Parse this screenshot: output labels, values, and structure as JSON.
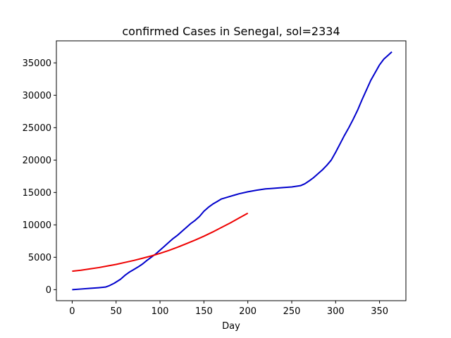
{
  "chart_data": {
    "type": "line",
    "title": "confirmed Cases in Senegal, sol=2334",
    "xlabel": "Day",
    "ylabel": "",
    "xlim": [
      -18,
      380
    ],
    "ylim": [
      -1700,
      38400
    ],
    "xticks": [
      0,
      50,
      100,
      150,
      200,
      250,
      300,
      350
    ],
    "yticks": [
      0,
      5000,
      10000,
      15000,
      20000,
      25000,
      30000,
      35000
    ],
    "grid": false,
    "series": [
      {
        "color": "#0000cc",
        "x": [
          0,
          10,
          20,
          30,
          38,
          42,
          48,
          55,
          60,
          65,
          70,
          75,
          80,
          85,
          90,
          95,
          100,
          105,
          110,
          115,
          120,
          125,
          130,
          135,
          140,
          145,
          150,
          155,
          160,
          165,
          170,
          175,
          180,
          185,
          190,
          200,
          210,
          220,
          230,
          240,
          250,
          260,
          265,
          270,
          275,
          280,
          285,
          290,
          295,
          300,
          305,
          310,
          315,
          320,
          325,
          330,
          335,
          340,
          345,
          350,
          355,
          360,
          364
        ],
        "y": [
          0,
          100,
          200,
          300,
          400,
          600,
          1000,
          1600,
          2200,
          2700,
          3100,
          3500,
          3950,
          4500,
          5000,
          5500,
          6100,
          6700,
          7300,
          7900,
          8400,
          9000,
          9600,
          10200,
          10700,
          11300,
          12100,
          12700,
          13200,
          13600,
          14000,
          14200,
          14400,
          14600,
          14800,
          15100,
          15350,
          15550,
          15650,
          15750,
          15850,
          16050,
          16350,
          16800,
          17300,
          17900,
          18500,
          19200,
          20000,
          21200,
          22500,
          23800,
          25000,
          26300,
          27700,
          29300,
          30800,
          32300,
          33500,
          34700,
          35600,
          36200,
          36700
        ]
      },
      {
        "color": "#ee0000",
        "x": [
          0,
          10,
          20,
          30,
          40,
          50,
          60,
          70,
          80,
          90,
          100,
          110,
          120,
          130,
          140,
          150,
          160,
          170,
          180,
          190,
          200
        ],
        "y": [
          2850,
          3000,
          3200,
          3400,
          3650,
          3900,
          4200,
          4500,
          4850,
          5200,
          5600,
          6050,
          6550,
          7100,
          7650,
          8250,
          8900,
          9600,
          10300,
          11050,
          11800
        ]
      }
    ]
  }
}
